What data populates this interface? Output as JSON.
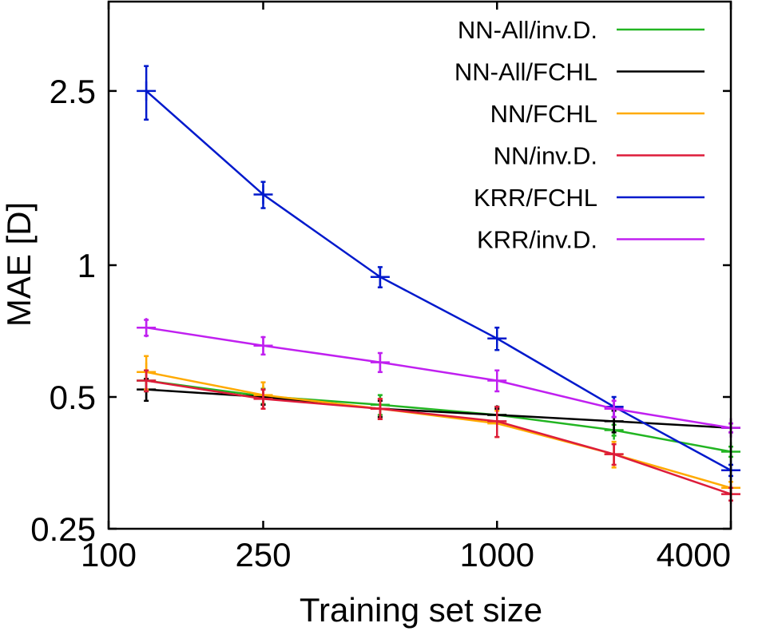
{
  "chart_data": {
    "type": "line",
    "title": "",
    "xlabel": "Training set size",
    "ylabel": "MAE [D]",
    "xscale": "log",
    "yscale": "log",
    "xlim": [
      100,
      4000
    ],
    "ylim": [
      0.25,
      4.0
    ],
    "x_ticks": [
      {
        "value": 100,
        "label": "100"
      },
      {
        "value": 250,
        "label": "250"
      },
      {
        "value": 1000,
        "label": "1000"
      },
      {
        "value": 4000,
        "label": "4000"
      }
    ],
    "y_ticks": [
      {
        "value": 0.25,
        "label": "0.25"
      },
      {
        "value": 0.5,
        "label": "0.5"
      },
      {
        "value": 1,
        "label": "1"
      },
      {
        "value": 2.5,
        "label": "2.5"
      }
    ],
    "legend_position": "top-right",
    "grid": false,
    "series": [
      {
        "name": "NN-All/inv.D.",
        "color": "#22b522",
        "x": [
          125,
          250,
          500,
          1000,
          2000,
          4000
        ],
        "y": [
          0.545,
          0.502,
          0.48,
          0.455,
          0.42,
          0.375
        ],
        "err": [
          0.03,
          0.02,
          0.025,
          0.02,
          0.012,
          0.01
        ]
      },
      {
        "name": "NN-All/FCHL",
        "color": "#000000",
        "x": [
          125,
          250,
          500,
          1000,
          2000,
          4000
        ],
        "y": [
          0.52,
          0.5,
          0.47,
          0.455,
          0.44,
          0.425
        ],
        "err": [
          0.03,
          0.02,
          0.02,
          0.015,
          0.025,
          0.01
        ]
      },
      {
        "name": "NN/FCHL",
        "color": "#ffaa00",
        "x": [
          125,
          250,
          500,
          1000,
          2000,
          4000
        ],
        "y": [
          0.57,
          0.505,
          0.47,
          0.435,
          0.37,
          0.31
        ],
        "err": [
          0.05,
          0.035,
          0.025,
          0.03,
          0.025,
          0.01
        ]
      },
      {
        "name": "NN/inv.D.",
        "color": "#dd1c3a",
        "x": [
          125,
          250,
          500,
          1000,
          2000,
          4000
        ],
        "y": [
          0.545,
          0.495,
          0.47,
          0.44,
          0.37,
          0.3
        ],
        "err": [
          0.03,
          0.025,
          0.025,
          0.035,
          0.02,
          0.01
        ]
      },
      {
        "name": "KRR/FCHL",
        "color": "#0019cc",
        "x": [
          125,
          250,
          500,
          1000,
          2000,
          4000
        ],
        "y": [
          2.5,
          1.45,
          0.94,
          0.68,
          0.475,
          0.34
        ],
        "err": [
          0.35,
          0.1,
          0.05,
          0.04,
          0.025,
          0.01
        ]
      },
      {
        "name": "KRR/inv.D.",
        "color": "#c020f0",
        "x": [
          125,
          250,
          500,
          1000,
          2000,
          4000
        ],
        "y": [
          0.72,
          0.655,
          0.6,
          0.545,
          0.47,
          0.425
        ],
        "err": [
          0.03,
          0.03,
          0.03,
          0.03,
          0.02,
          0.01
        ]
      }
    ]
  }
}
